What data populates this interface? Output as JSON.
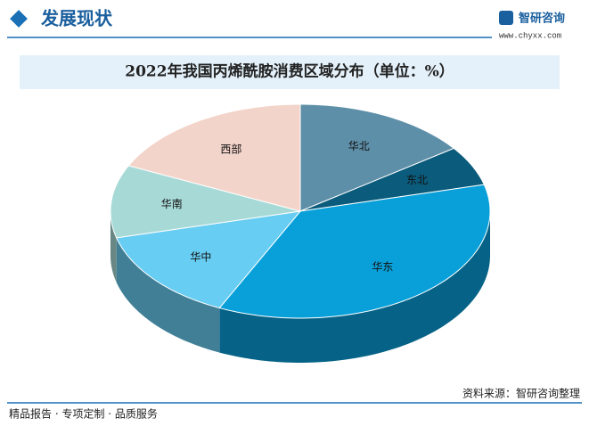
{
  "header": {
    "title": "发展现状",
    "logo": "智研咨询",
    "url": "www.chyxx.com"
  },
  "chart_data": {
    "type": "pie3d",
    "title": "2022年我国丙烯酰胺消费区域分布（单位：%）",
    "categories": [
      "华北",
      "东北",
      "华东",
      "华中",
      "华南",
      "西部"
    ],
    "values": [
      15,
      6,
      36,
      14,
      11,
      18
    ],
    "colors": [
      "#5e8fa8",
      "#0b5b7c",
      "#09a0d9",
      "#68cdf2",
      "#a7dad7",
      "#f3d4ca"
    ]
  },
  "footer": {
    "slogan": "精品报告 · 专项定制 · 品质服务",
    "source": "资料来源：智研咨询整理"
  }
}
